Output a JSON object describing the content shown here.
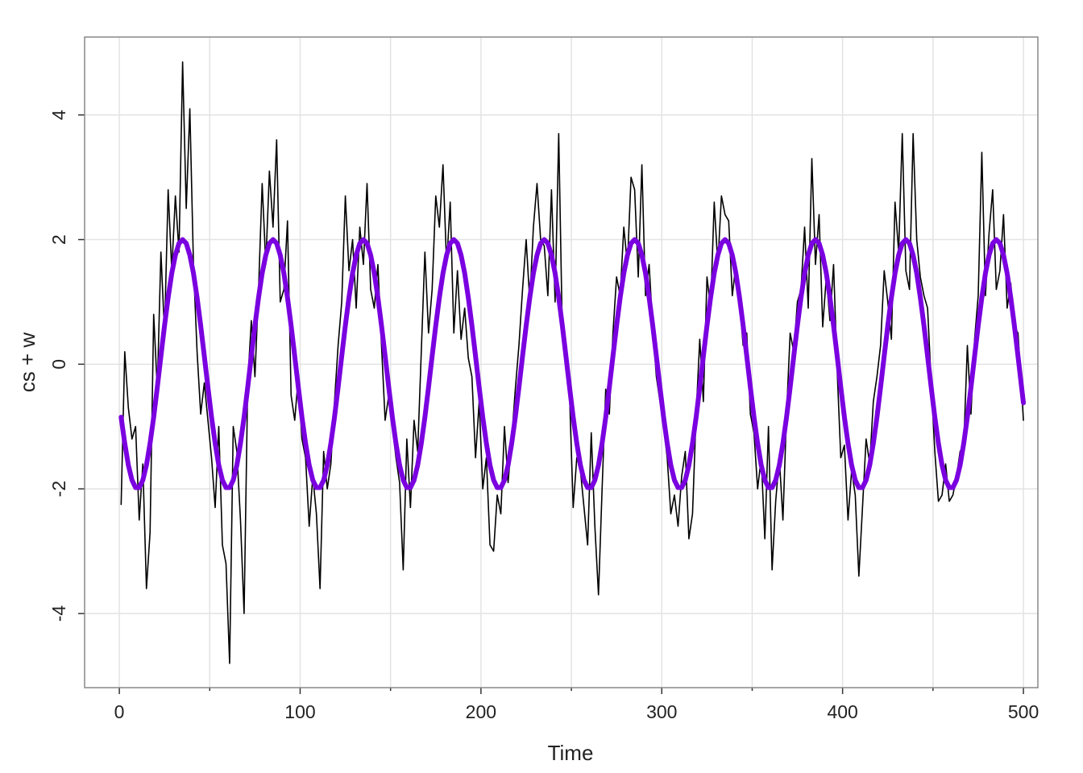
{
  "chart_data": {
    "type": "line",
    "xlabel": "Time",
    "ylabel": "cs + w",
    "xlim": [
      -19.2,
      508
    ],
    "ylim": [
      -5.19,
      5.25
    ],
    "xticks": [
      0,
      100,
      200,
      300,
      400,
      500
    ],
    "xminor": [
      50,
      150,
      250,
      350,
      450
    ],
    "yticks": [
      -4,
      -2,
      0,
      2,
      4
    ],
    "grid": true,
    "x": [
      1,
      3,
      5,
      7,
      9,
      11,
      13,
      15,
      17,
      19,
      21,
      23,
      25,
      27,
      29,
      31,
      33,
      35,
      37,
      39,
      41,
      43,
      45,
      47,
      49,
      51,
      53,
      55,
      57,
      59,
      61,
      63,
      65,
      67,
      69,
      71,
      73,
      75,
      77,
      79,
      81,
      83,
      85,
      87,
      89,
      91,
      93,
      95,
      97,
      99,
      101,
      103,
      105,
      107,
      109,
      111,
      113,
      115,
      117,
      119,
      121,
      123,
      125,
      127,
      129,
      131,
      133,
      135,
      137,
      139,
      141,
      143,
      145,
      147,
      149,
      151,
      153,
      155,
      157,
      159,
      161,
      163,
      165,
      167,
      169,
      171,
      173,
      175,
      177,
      179,
      181,
      183,
      185,
      187,
      189,
      191,
      193,
      195,
      197,
      199,
      201,
      203,
      205,
      207,
      209,
      211,
      213,
      215,
      217,
      219,
      221,
      223,
      225,
      227,
      229,
      231,
      233,
      235,
      237,
      239,
      241,
      243,
      245,
      247,
      249,
      251,
      253,
      255,
      257,
      259,
      261,
      263,
      265,
      267,
      269,
      271,
      273,
      275,
      277,
      279,
      281,
      283,
      285,
      287,
      289,
      291,
      293,
      295,
      297,
      299,
      301,
      303,
      305,
      307,
      309,
      311,
      313,
      315,
      317,
      319,
      321,
      323,
      325,
      327,
      329,
      331,
      333,
      335,
      337,
      339,
      341,
      343,
      345,
      347,
      349,
      351,
      353,
      355,
      357,
      359,
      361,
      363,
      365,
      367,
      369,
      371,
      373,
      375,
      377,
      379,
      381,
      383,
      385,
      387,
      389,
      391,
      393,
      395,
      397,
      399,
      401,
      403,
      405,
      407,
      409,
      411,
      413,
      415,
      417,
      419,
      421,
      423,
      425,
      427,
      429,
      431,
      433,
      435,
      437,
      439,
      441,
      443,
      445,
      447,
      449,
      451,
      453,
      455,
      457,
      459,
      461,
      463,
      465,
      467,
      469,
      471,
      473,
      475,
      477,
      479,
      481,
      483,
      485,
      487,
      489,
      491,
      493,
      495,
      497,
      499,
      500
    ],
    "series": [
      {
        "color": "#000000",
        "width": 1.6,
        "values": [
          -2.25,
          0.2,
          -0.7,
          -1.2,
          -1.0,
          -2.5,
          -1.6,
          -3.6,
          -2.7,
          0.8,
          -0.4,
          1.8,
          0.5,
          2.8,
          1.5,
          2.7,
          1.8,
          4.85,
          2.5,
          4.1,
          1.6,
          0.2,
          -0.8,
          -0.3,
          -0.9,
          -1.5,
          -2.3,
          -1.0,
          -2.9,
          -3.2,
          -4.8,
          -1.0,
          -1.4,
          -2.5,
          -4.0,
          -0.3,
          0.7,
          -0.2,
          1.2,
          2.9,
          1.6,
          3.1,
          2.2,
          3.6,
          1.0,
          1.2,
          2.3,
          -0.5,
          -0.9,
          -0.2,
          -1.2,
          -1.5,
          -2.6,
          -1.8,
          -2.4,
          -3.6,
          -1.4,
          -2.0,
          -1.6,
          -0.6,
          0.3,
          1.0,
          2.7,
          1.5,
          2.0,
          0.9,
          2.2,
          1.6,
          2.9,
          1.2,
          0.9,
          1.6,
          0.3,
          -0.9,
          -0.5,
          -1.0,
          -1.5,
          -1.9,
          -3.3,
          -1.2,
          -2.3,
          -0.9,
          -1.4,
          0.2,
          1.8,
          0.5,
          1.2,
          2.7,
          2.2,
          3.2,
          1.6,
          2.6,
          0.5,
          1.5,
          0.4,
          0.9,
          0.1,
          -0.2,
          -1.5,
          -0.6,
          -2.0,
          -1.5,
          -2.9,
          -3.0,
          -2.1,
          -2.4,
          -1.0,
          -1.9,
          -1.2,
          -0.4,
          0.3,
          1.2,
          2.0,
          1.0,
          2.2,
          2.9,
          2.0,
          1.9,
          1.1,
          2.8,
          1.0,
          3.7,
          0.5,
          -0.1,
          -0.5,
          -2.3,
          -1.5,
          -1.7,
          -2.3,
          -2.9,
          -1.1,
          -2.6,
          -3.7,
          -2.0,
          -0.4,
          -0.8,
          0.5,
          1.4,
          1.1,
          2.2,
          1.6,
          3.0,
          2.8,
          1.4,
          3.2,
          1.1,
          1.6,
          0.6,
          -0.2,
          -0.6,
          -1.0,
          -1.5,
          -2.4,
          -2.1,
          -2.6,
          -1.8,
          -1.4,
          -2.8,
          -2.4,
          -0.8,
          0.4,
          -0.6,
          1.4,
          0.9,
          2.6,
          1.6,
          2.7,
          2.4,
          2.3,
          1.1,
          1.6,
          1.0,
          0.3,
          0.5,
          -0.8,
          -1.1,
          -2.0,
          -1.5,
          -2.8,
          -1.0,
          -3.3,
          -2.2,
          -1.5,
          -2.5,
          -0.8,
          0.5,
          0.2,
          1.0,
          1.2,
          2.2,
          0.9,
          3.3,
          1.6,
          2.4,
          0.6,
          1.4,
          0.7,
          1.6,
          -0.1,
          -1.5,
          -1.3,
          -2.5,
          -1.7,
          -2.1,
          -3.4,
          -2.3,
          -1.2,
          -1.6,
          -0.6,
          -0.2,
          0.3,
          1.5,
          1.0,
          0.4,
          2.6,
          1.8,
          3.7,
          1.5,
          1.2,
          3.7,
          2.0,
          1.4,
          1.1,
          0.9,
          -0.3,
          -1.4,
          -2.2,
          -2.1,
          -1.6,
          -2.2,
          -2.1,
          -1.8,
          -1.4,
          -1.3,
          0.3,
          -0.8,
          0.4,
          1.1,
          3.4,
          1.1,
          2.1,
          2.8,
          1.2,
          1.5,
          2.4,
          0.9,
          1.3,
          0.6,
          0.5,
          -0.4,
          -0.9
        ]
      },
      {
        "color": "#7a00e0",
        "width": 6,
        "values": [
          -0.85,
          -1.27,
          -1.62,
          -1.86,
          -1.98,
          -1.98,
          -1.86,
          -1.62,
          -1.27,
          -0.85,
          -0.37,
          0.13,
          0.62,
          1.07,
          1.46,
          1.75,
          1.94,
          2,
          1.94,
          1.75,
          1.46,
          1.07,
          0.62,
          0.13,
          -0.37,
          -0.85,
          -1.27,
          -1.62,
          -1.86,
          -1.98,
          -1.98,
          -1.86,
          -1.62,
          -1.27,
          -0.85,
          -0.37,
          0.13,
          0.62,
          1.07,
          1.46,
          1.75,
          1.94,
          2,
          1.94,
          1.75,
          1.46,
          1.07,
          0.62,
          0.13,
          -0.37,
          -0.85,
          -1.27,
          -1.62,
          -1.86,
          -1.98,
          -1.98,
          -1.86,
          -1.62,
          -1.27,
          -0.85,
          -0.37,
          0.13,
          0.62,
          1.07,
          1.46,
          1.75,
          1.94,
          2,
          1.94,
          1.75,
          1.46,
          1.07,
          0.62,
          0.13,
          -0.37,
          -0.85,
          -1.27,
          -1.62,
          -1.86,
          -1.98,
          -1.98,
          -1.86,
          -1.62,
          -1.27,
          -0.85,
          -0.37,
          0.13,
          0.62,
          1.07,
          1.46,
          1.75,
          1.94,
          2,
          1.94,
          1.75,
          1.46,
          1.07,
          0.62,
          0.13,
          -0.37,
          -0.85,
          -1.27,
          -1.62,
          -1.86,
          -1.98,
          -1.98,
          -1.86,
          -1.62,
          -1.27,
          -0.85,
          -0.37,
          0.13,
          0.62,
          1.07,
          1.46,
          1.75,
          1.94,
          2,
          1.94,
          1.75,
          1.46,
          1.07,
          0.62,
          0.13,
          -0.37,
          -0.85,
          -1.27,
          -1.62,
          -1.86,
          -1.98,
          -1.98,
          -1.86,
          -1.62,
          -1.27,
          -0.85,
          -0.37,
          0.13,
          0.62,
          1.07,
          1.46,
          1.75,
          1.94,
          2,
          1.94,
          1.75,
          1.46,
          1.07,
          0.62,
          0.13,
          -0.37,
          -0.85,
          -1.27,
          -1.62,
          -1.86,
          -1.98,
          -1.98,
          -1.86,
          -1.62,
          -1.27,
          -0.85,
          -0.37,
          0.13,
          0.62,
          1.07,
          1.46,
          1.75,
          1.94,
          2,
          1.94,
          1.75,
          1.46,
          1.07,
          0.62,
          0.13,
          -0.37,
          -0.85,
          -1.27,
          -1.62,
          -1.86,
          -1.98,
          -1.98,
          -1.86,
          -1.62,
          -1.27,
          -0.85,
          -0.37,
          0.13,
          0.62,
          1.07,
          1.46,
          1.75,
          1.94,
          2,
          1.94,
          1.75,
          1.46,
          1.07,
          0.62,
          0.13,
          -0.37,
          -0.85,
          -1.27,
          -1.62,
          -1.86,
          -1.98,
          -1.98,
          -1.86,
          -1.62,
          -1.27,
          -0.85,
          -0.37,
          0.13,
          0.62,
          1.07,
          1.46,
          1.75,
          1.94,
          2,
          1.94,
          1.75,
          1.46,
          1.07,
          0.62,
          0.13,
          -0.37,
          -0.85,
          -1.27,
          -1.62,
          -1.86,
          -1.98,
          -1.98,
          -1.86,
          -1.62,
          -1.27,
          -0.85,
          -0.37,
          0.13,
          0.62,
          1.07,
          1.46,
          1.75,
          1.94,
          2,
          1.94,
          1.75,
          1.46,
          1.07,
          0.62,
          0.13,
          -0.37,
          -0.62
        ]
      }
    ]
  }
}
